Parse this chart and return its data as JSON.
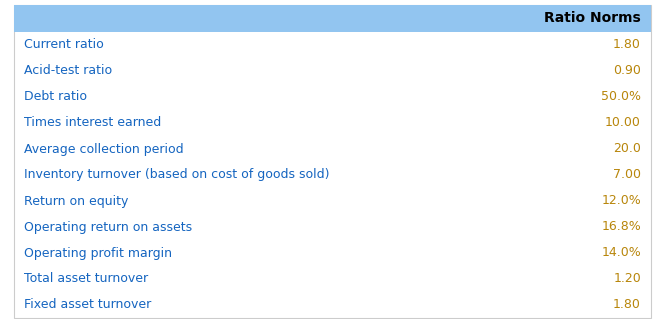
{
  "title": "Ratio Norms",
  "header_bg": "#92c5f0",
  "header_text_color": "#000000",
  "row_text_color": "#1565C0",
  "value_text_color": "#B8860B",
  "bg_color": "#ffffff",
  "table_bg": "#ffffff",
  "outer_bg": "#ffffff",
  "border_color": "#cccccc",
  "rows": [
    [
      "Current ratio",
      "1.80"
    ],
    [
      "Acid-test ratio",
      "0.90"
    ],
    [
      "Debt ratio",
      "50.0%"
    ],
    [
      "Times interest earned",
      "10.00"
    ],
    [
      "Average collection period",
      "20.0"
    ],
    [
      "Inventory turnover (based on cost of goods sold)",
      "7.00"
    ],
    [
      "Return on equity",
      "12.0%"
    ],
    [
      "Operating return on assets",
      "16.8%"
    ],
    [
      "Operating profit margin",
      "14.0%"
    ],
    [
      "Total asset turnover",
      "1.20"
    ],
    [
      "Fixed asset turnover",
      "1.80"
    ]
  ],
  "font_size": 9.0,
  "header_font_size": 10.0,
  "figsize": [
    6.59,
    3.19
  ],
  "dpi": 100
}
